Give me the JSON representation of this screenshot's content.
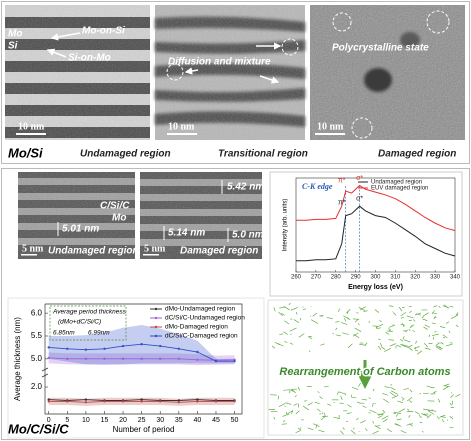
{
  "top": {
    "label": "Mo/Si",
    "panels": [
      {
        "caption": "Undamaged region",
        "labels": [
          "Mo",
          "Si",
          "Mo-on-Si",
          "Si-on-Mo"
        ],
        "scale": "10 nm"
      },
      {
        "caption": "Transitional region",
        "labels": [
          "Diffusion and mixture"
        ],
        "scale": "10 nm"
      },
      {
        "caption": "Damaged region",
        "labels": [
          "Polycrystalline state"
        ],
        "scale": "10 nm"
      }
    ]
  },
  "bottom": {
    "label": "Mo/C/Si/C",
    "panels": [
      {
        "caption": "Undamaged region",
        "labels": [
          "C/Si/C",
          "Mo",
          "5.01 nm"
        ],
        "scale": "5 nm"
      },
      {
        "caption": "Damaged region",
        "labels": [
          "5.42 nm",
          "5.14 nm",
          "5.0 nm"
        ],
        "scale": "5 nm"
      }
    ],
    "simulation_label": "Rearrangement of Carbon atoms"
  },
  "chart_data": [
    {
      "type": "line",
      "x_label": "Energy loss (eV)",
      "y_label": "Intensity (arb. units)",
      "annotation": "C-K edge",
      "peak_labels": [
        "π*",
        "σ*",
        "π*",
        "σ*"
      ],
      "reference_lines": [
        285,
        292
      ],
      "xlim": [
        260,
        340
      ],
      "xticks": [
        260,
        270,
        280,
        290,
        300,
        310,
        320,
        330,
        340
      ],
      "ylim": [
        0,
        1
      ],
      "x": [
        260,
        265,
        270,
        275,
        280,
        283,
        285,
        288,
        292,
        295,
        300,
        305,
        310,
        315,
        320,
        325,
        330,
        335,
        340
      ],
      "series": [
        {
          "name": "Undamaged region",
          "color": "#222222",
          "values": [
            0.12,
            0.12,
            0.13,
            0.13,
            0.14,
            0.3,
            0.6,
            0.62,
            0.7,
            0.65,
            0.6,
            0.58,
            0.52,
            0.45,
            0.38,
            0.3,
            0.25,
            0.2,
            0.17
          ]
        },
        {
          "name": "EUV damaged region",
          "color": "#e53030",
          "values": [
            0.55,
            0.55,
            0.56,
            0.56,
            0.57,
            0.7,
            0.86,
            0.84,
            0.92,
            0.88,
            0.85,
            0.82,
            0.78,
            0.72,
            0.65,
            0.58,
            0.52,
            0.47,
            0.44
          ]
        }
      ]
    },
    {
      "type": "line",
      "x_label": "Number of period",
      "y_label": "Average thickness (nm)",
      "annotation": {
        "title": "Average period thickness",
        "formula": "(dMo+dC/Si/C)",
        "values": [
          "6.85nm",
          "6.99nm"
        ]
      },
      "xlim": [
        -1,
        52
      ],
      "xticks": [
        0,
        5,
        10,
        15,
        20,
        25,
        30,
        35,
        40,
        45,
        50
      ],
      "ylim": [
        4.8,
        6.2
      ],
      "yticks": [
        {
          "value": 5,
          "label": "5.0"
        },
        5.5,
        {
          "value": 6,
          "label": "6.0"
        }
      ],
      "ylim_lower": [
        1.7,
        2.1
      ],
      "yticks_lower": [
        {
          "value": 2,
          "label": "2.0"
        }
      ],
      "x": [
        0,
        5,
        10,
        15,
        20,
        25,
        30,
        35,
        40,
        45,
        50
      ],
      "series": [
        {
          "name": "dMo-Undamaged region",
          "color": "#333333",
          "values": [
            1.86,
            1.85,
            1.86,
            1.85,
            1.85,
            1.86,
            1.85,
            1.85,
            1.86,
            1.85,
            1.85
          ]
        },
        {
          "name": "dC/Si/C-Undamaged region",
          "color": "#a060d8",
          "values": [
            5.02,
            5.0,
            5.0,
            5.0,
            5.0,
            5.0,
            5.0,
            5.0,
            4.98,
            4.97,
            4.98
          ],
          "errors": [
            0.12,
            0.12,
            0.12,
            0.12,
            0.12,
            0.12,
            0.12,
            0.12,
            0.12,
            0.1,
            0.1
          ]
        },
        {
          "name": "dMo-Damaged region",
          "color": "#c04848",
          "values": [
            1.84,
            1.84,
            1.83,
            1.84,
            1.84,
            1.84,
            1.84,
            1.83,
            1.84,
            1.84,
            1.84
          ],
          "errors": [
            0.04,
            0.04,
            0.04,
            0.04,
            0.04,
            0.04,
            0.04,
            0.04,
            0.04,
            0.04,
            0.04
          ]
        },
        {
          "name": "dC/Si/C-Damaged region",
          "color": "#3050c8",
          "values": [
            5.25,
            5.22,
            5.2,
            5.22,
            5.28,
            5.32,
            5.28,
            5.22,
            5.15,
            4.95,
            4.95
          ],
          "errors": [
            0.25,
            0.28,
            0.32,
            0.35,
            0.4,
            0.42,
            0.38,
            0.32,
            0.25,
            0.05,
            0.05
          ]
        }
      ]
    }
  ]
}
